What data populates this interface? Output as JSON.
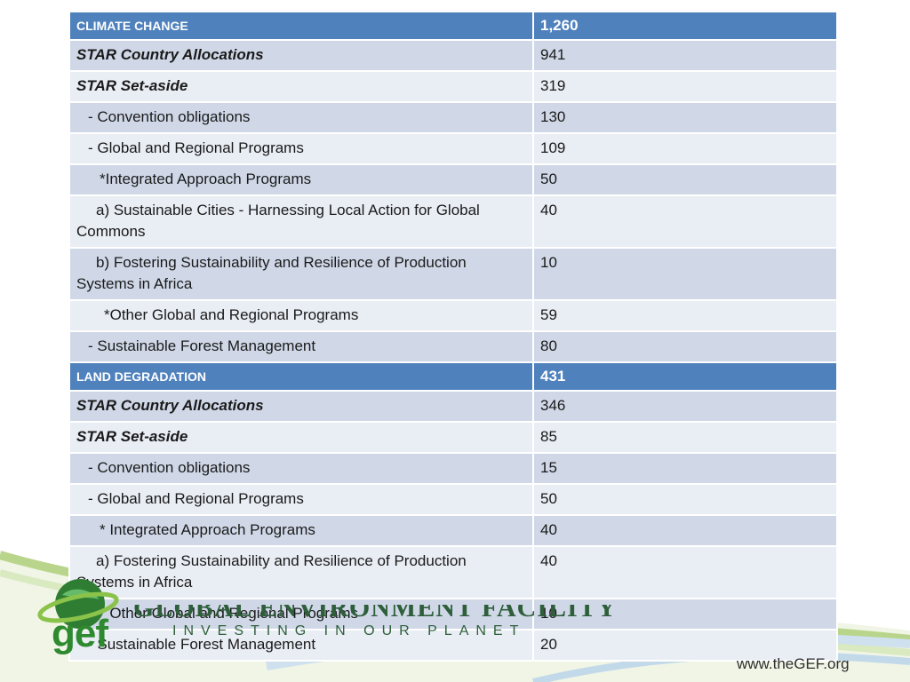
{
  "sections": [
    {
      "title": "CLIMATE CHANGE",
      "total": "1,260",
      "rows": [
        {
          "label": "STAR Country Allocations",
          "value": "941"
        },
        {
          "label": "STAR Set-aside",
          "value": "319"
        },
        {
          "label": "- Convention obligations",
          "value": "130"
        },
        {
          "label": "- Global and Regional Programs",
          "value": "109"
        },
        {
          "label": "*Integrated Approach Programs",
          "value": "50"
        },
        {
          "label": "a) Sustainable Cities - Harnessing Local Action for Global Commons",
          "value": "40"
        },
        {
          "label": "b) Fostering Sustainability and Resilience of Production Systems in Africa",
          "value": "10"
        },
        {
          "label": "*Other Global and Regional Programs",
          "value": "59"
        },
        {
          "label": "- Sustainable Forest Management",
          "value": "80"
        }
      ]
    },
    {
      "title": "LAND DEGRADATION",
      "total": "431",
      "rows": [
        {
          "label": "STAR Country Allocations",
          "value": "346"
        },
        {
          "label": "STAR Set-aside",
          "value": "85"
        },
        {
          "label": "- Convention obligations",
          "value": "15"
        },
        {
          "label": "- Global and Regional Programs",
          "value": "50"
        },
        {
          "label": "* Integrated Approach Programs",
          "value": "40"
        },
        {
          "label": "a) Fostering Sustainability and Resilience of Production Systems in Africa",
          "value": "40"
        },
        {
          "label": "* Other Global and Regional Programs",
          "value": "10"
        },
        {
          "label": "- Sustainable Forest Management",
          "value": "20"
        }
      ]
    }
  ],
  "footer": {
    "logo_text": "gef",
    "org_name": "GLOBAL ENVIRONMENT FACILITY",
    "tagline": "INVESTING IN OUR PLANET",
    "website": "www.theGEF.org"
  },
  "colors": {
    "header": "#4f81bd",
    "row_dark": "#d0d8e8",
    "row_light": "#e9edf4",
    "brand_green": "#2e8a2e"
  }
}
